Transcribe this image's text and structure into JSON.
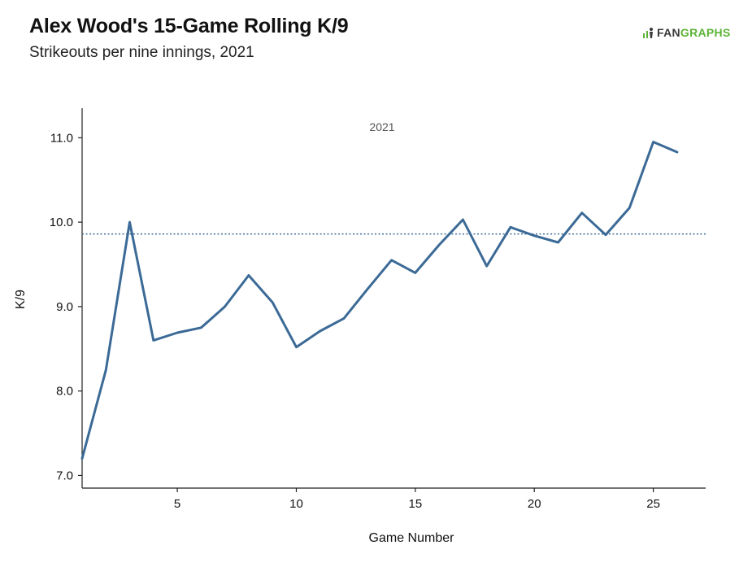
{
  "header": {
    "title": "Alex Wood's 15-Game Rolling K/9",
    "subtitle": "Strikeouts per nine innings, 2021"
  },
  "logo": {
    "prefix": "FAN",
    "suffix": "GRAPHS"
  },
  "colors": {
    "line": "#3b6a96",
    "axis": "#222222",
    "logo_green": "#5cb335"
  },
  "chart_data": {
    "type": "line",
    "title": "Alex Wood's 15-Game Rolling K/9",
    "subtitle": "Strikeouts per nine innings, 2021",
    "xlabel": "Game Number",
    "ylabel": "K/9",
    "xlim": [
      1,
      27.2
    ],
    "ylim": [
      6.85,
      11.35
    ],
    "xticks": [
      5,
      10,
      15,
      20,
      25
    ],
    "yticks": [
      7.0,
      8.0,
      9.0,
      10.0,
      11.0
    ],
    "grid": false,
    "annotation": "2021",
    "reference_line": {
      "value": 9.86,
      "style": "dotted"
    },
    "series": [
      {
        "x": [
          1,
          2,
          3,
          4,
          5,
          6,
          7,
          8,
          9,
          10,
          11,
          12,
          13,
          14,
          15,
          16,
          17,
          18,
          19,
          20,
          21,
          22,
          23,
          24,
          25,
          26
        ],
        "values": [
          7.2,
          8.25,
          10.0,
          8.6,
          8.69,
          8.75,
          9.0,
          9.37,
          9.05,
          8.52,
          8.71,
          8.86,
          9.21,
          9.55,
          9.4,
          9.73,
          10.03,
          9.48,
          9.94,
          9.84,
          9.76,
          10.11,
          9.85,
          10.17,
          10.95,
          10.83
        ]
      }
    ]
  }
}
